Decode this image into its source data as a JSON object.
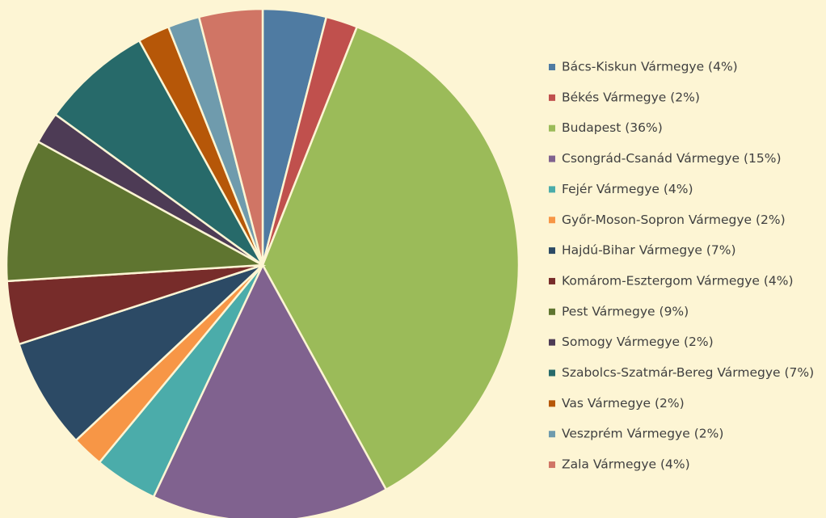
{
  "chart_data": {
    "type": "pie",
    "categories": [
      "Bács-Kiskun Vármegye (4%)",
      "Békés Vármegye (2%)",
      "Budapest (36%)",
      "Csongrád-Csanád Vármegye (15%)",
      "Fejér Vármegye (4%)",
      "Győr-Moson-Sopron Vármegye (2%)",
      "Hajdú-Bihar Vármegye (7%)",
      "Komárom-Esztergom Vármegye (4%)",
      "Pest Vármegye (9%)",
      "Somogy Vármegye (2%)",
      "Szabolcs-Szatmár-Bereg Vármegye (7%)",
      "Vas Vármegye (2%)",
      "Veszprém Vármegye (2%)",
      "Zala Vármegye (4%)"
    ],
    "values": [
      4,
      2,
      36,
      15,
      4,
      2,
      7,
      4,
      9,
      2,
      7,
      2,
      2,
      4
    ],
    "colors": [
      "#4f7ba2",
      "#c0504d",
      "#9bbb59",
      "#80628f",
      "#4bacaa",
      "#f79646",
      "#2c4a65",
      "#772c2a",
      "#5f7530",
      "#4d3b55",
      "#276a6a",
      "#b65708",
      "#6f9bad",
      "#d07565"
    ],
    "legend": "right"
  }
}
